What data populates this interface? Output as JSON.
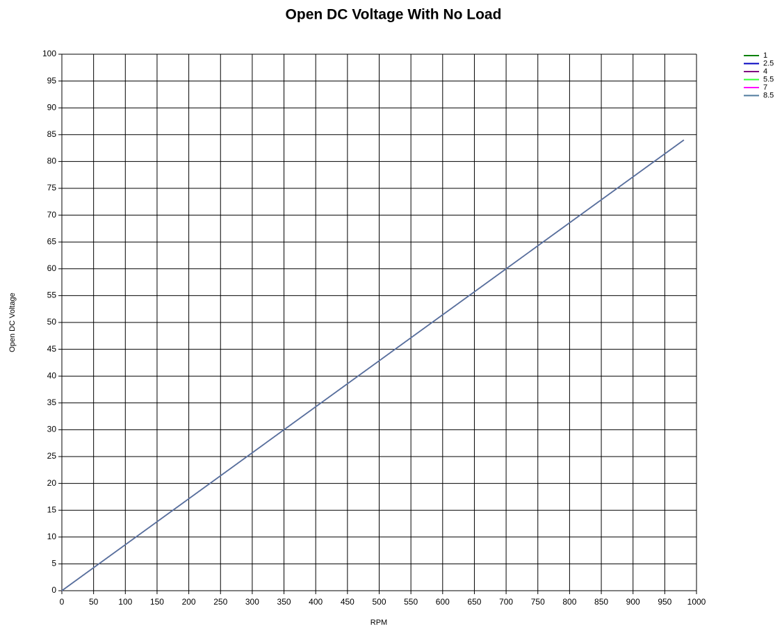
{
  "chart_data": {
    "type": "line",
    "title": "Open DC Voltage With No Load",
    "xlabel": "RPM",
    "ylabel": "Open DC Voltage",
    "x": [
      0,
      980
    ],
    "series": [
      {
        "name": "1",
        "color": "#008000",
        "values": [
          0,
          84
        ]
      },
      {
        "name": "2.5",
        "color": "#0000c0",
        "values": [
          0,
          84
        ]
      },
      {
        "name": "4",
        "color": "#800080",
        "values": [
          0,
          84
        ]
      },
      {
        "name": "5.5",
        "color": "#33ff33",
        "values": [
          0,
          84
        ]
      },
      {
        "name": "7",
        "color": "#ff00ff",
        "values": [
          0,
          84
        ]
      },
      {
        "name": "8.5",
        "color": "#4e7a9c",
        "values": [
          0,
          84
        ]
      }
    ],
    "xlim": [
      0,
      1000
    ],
    "xticks": [
      0,
      50,
      100,
      150,
      200,
      250,
      300,
      350,
      400,
      450,
      500,
      550,
      600,
      650,
      700,
      750,
      800,
      850,
      900,
      950,
      1000
    ],
    "ylim": [
      0,
      100
    ],
    "yticks": [
      0,
      5,
      10,
      15,
      20,
      25,
      30,
      35,
      40,
      45,
      50,
      55,
      60,
      65,
      70,
      75,
      80,
      85,
      90,
      95,
      100
    ],
    "grid": true,
    "legend": "top-right"
  }
}
